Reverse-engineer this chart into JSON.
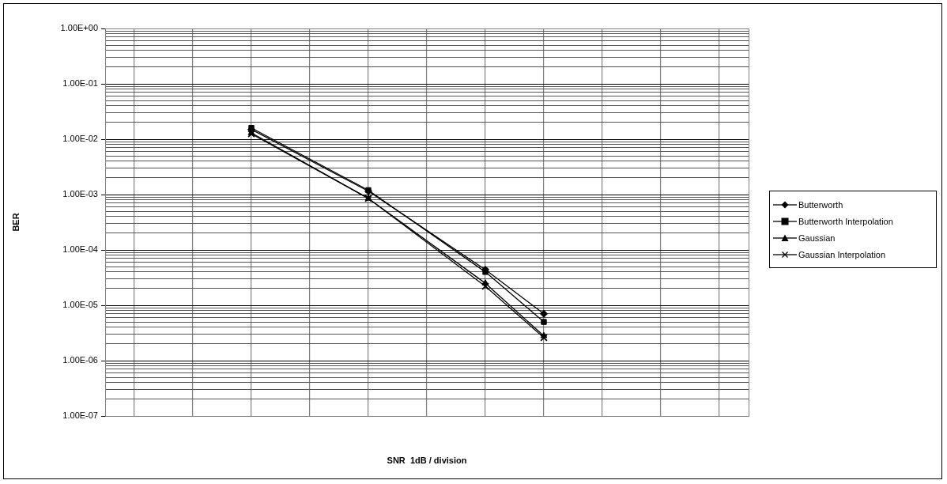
{
  "chart_data": {
    "type": "line",
    "xlabel": "SNR  1dB / division",
    "ylabel": "BER",
    "log": "y",
    "grid": true,
    "legend": "right",
    "tick_labels": "y",
    "line_style": "solid",
    "categories": [
      null,
      null,
      null,
      null,
      null,
      null,
      null,
      null,
      null,
      null,
      null
    ],
    "ylim": [
      1e-07,
      1
    ],
    "yticks": [
      {
        "value": 1e-07,
        "label": "1.00E-07"
      },
      {
        "value": 2e-07,
        "label": null
      },
      {
        "value": 3e-07,
        "label": null
      },
      {
        "value": 4e-07,
        "label": null
      },
      {
        "value": 5e-07,
        "label": null
      },
      {
        "value": 6e-07,
        "label": null
      },
      {
        "value": 7e-07,
        "label": null
      },
      {
        "value": 8e-07,
        "label": null
      },
      {
        "value": 9e-07,
        "label": null
      },
      {
        "value": 1e-06,
        "label": "1.00E-06"
      },
      {
        "value": 2e-06,
        "label": null
      },
      {
        "value": 3e-06,
        "label": null
      },
      {
        "value": 4e-06,
        "label": null
      },
      {
        "value": 5e-06,
        "label": null
      },
      {
        "value": 6e-06,
        "label": null
      },
      {
        "value": 7e-06,
        "label": null
      },
      {
        "value": 8e-06,
        "label": null
      },
      {
        "value": 9e-06,
        "label": null
      },
      {
        "value": 1e-05,
        "label": "1.00E-05"
      },
      {
        "value": 2e-05,
        "label": null
      },
      {
        "value": 3e-05,
        "label": null
      },
      {
        "value": 4e-05,
        "label": null
      },
      {
        "value": 5e-05,
        "label": null
      },
      {
        "value": 6e-05,
        "label": null
      },
      {
        "value": 7e-05,
        "label": null
      },
      {
        "value": 8e-05,
        "label": null
      },
      {
        "value": 9e-05,
        "label": null
      },
      {
        "value": 0.0001,
        "label": "1.00E-04"
      },
      {
        "value": 0.0002,
        "label": null
      },
      {
        "value": 0.0003,
        "label": null
      },
      {
        "value": 0.0004,
        "label": null
      },
      {
        "value": 0.0005,
        "label": null
      },
      {
        "value": 0.0006,
        "label": null
      },
      {
        "value": 0.0007,
        "label": null
      },
      {
        "value": 0.0008,
        "label": null
      },
      {
        "value": 0.0009,
        "label": null
      },
      {
        "value": 0.001,
        "label": "1.00E-03"
      },
      {
        "value": 0.002,
        "label": null
      },
      {
        "value": 0.003,
        "label": null
      },
      {
        "value": 0.004,
        "label": null
      },
      {
        "value": 0.005,
        "label": null
      },
      {
        "value": 0.006,
        "label": null
      },
      {
        "value": 0.007,
        "label": null
      },
      {
        "value": 0.008,
        "label": null
      },
      {
        "value": 0.009,
        "label": null
      },
      {
        "value": 0.01,
        "label": "1.00E-02"
      },
      {
        "value": 0.02,
        "label": null
      },
      {
        "value": 0.03,
        "label": null
      },
      {
        "value": 0.04,
        "label": null
      },
      {
        "value": 0.05,
        "label": null
      },
      {
        "value": 0.06,
        "label": null
      },
      {
        "value": 0.07,
        "label": null
      },
      {
        "value": 0.08,
        "label": null
      },
      {
        "value": 0.09,
        "label": null
      },
      {
        "value": 0.1,
        "label": "1.00E-01"
      },
      {
        "value": 0.2,
        "label": null
      },
      {
        "value": 0.3,
        "label": null
      },
      {
        "value": 0.4,
        "label": null
      },
      {
        "value": 0.5,
        "label": null
      },
      {
        "value": 0.6,
        "label": null
      },
      {
        "value": 0.7,
        "label": null
      },
      {
        "value": 0.8,
        "label": null
      },
      {
        "value": 0.9,
        "label": null
      },
      {
        "value": 1,
        "label": "1.00E+00"
      }
    ],
    "series": [
      {
        "name": "Butterworth",
        "color": "#000000",
        "marker": "diamond",
        "values": [
          null,
          null,
          0.015,
          null,
          0.00115,
          null,
          4.4e-05,
          7e-06,
          null,
          null,
          null
        ]
      },
      {
        "name": "Butterworth Interpolation",
        "color": "#000000",
        "marker": "square",
        "values": [
          null,
          null,
          0.016,
          null,
          0.0012,
          null,
          4e-05,
          5e-06,
          null,
          null,
          null
        ]
      },
      {
        "name": "Gaussian",
        "color": "#000000",
        "marker": "triangle",
        "values": [
          null,
          null,
          0.013,
          null,
          0.00085,
          null,
          2.5e-05,
          2.8e-06,
          null,
          null,
          null
        ]
      },
      {
        "name": "Gaussian Interpolation",
        "color": "#000000",
        "marker": "cross",
        "values": [
          null,
          null,
          0.0125,
          null,
          0.00085,
          null,
          2.2e-05,
          2.6e-06,
          null,
          null,
          null
        ]
      }
    ]
  }
}
